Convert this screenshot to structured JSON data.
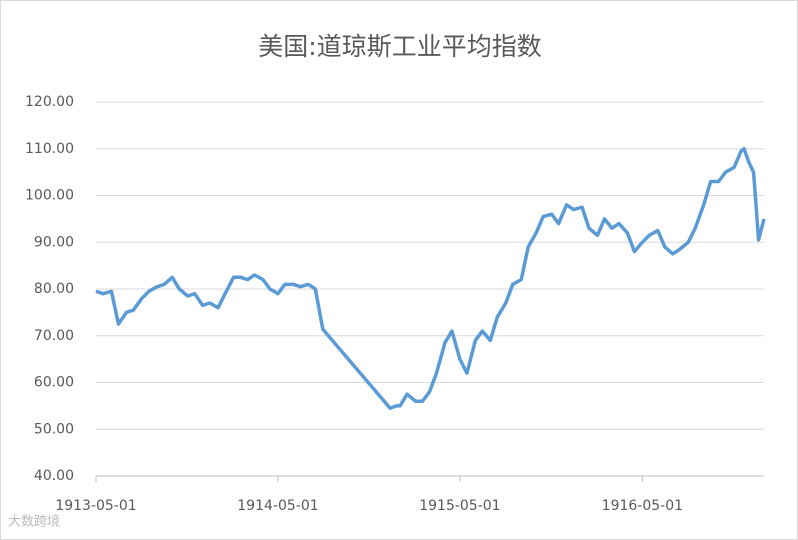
{
  "chart_data": {
    "type": "line",
    "title": "美国:道琼斯工业平均指数",
    "x": [
      "1913-05-01",
      "1913-05-15",
      "1913-06-01",
      "1913-06-10",
      "1913-06-15",
      "1913-07-01",
      "1913-07-15",
      "1913-08-01",
      "1913-08-15",
      "1913-09-01",
      "1913-09-15",
      "1913-10-01",
      "1913-10-15",
      "1913-11-01",
      "1913-11-15",
      "1913-12-01",
      "1913-12-15",
      "1914-01-01",
      "1914-01-15",
      "1914-02-01",
      "1914-02-15",
      "1914-03-01",
      "1914-03-15",
      "1914-04-01",
      "1914-04-15",
      "1914-05-01",
      "1914-05-15",
      "1914-06-01",
      "1914-06-15",
      "1914-07-01",
      "1914-07-15",
      "1914-07-30",
      "1914-12-12",
      "1914-12-24",
      "1915-01-01",
      "1915-01-15",
      "1915-02-01",
      "1915-02-15",
      "1915-03-01",
      "1915-03-15",
      "1915-04-01",
      "1915-04-15",
      "1915-05-01",
      "1915-05-15",
      "1915-06-01",
      "1915-06-15",
      "1915-07-01",
      "1915-07-15",
      "1915-08-01",
      "1915-08-15",
      "1915-09-01",
      "1915-09-15",
      "1915-10-01",
      "1915-10-15",
      "1915-11-01",
      "1915-11-15",
      "1915-12-01",
      "1915-12-15",
      "1916-01-01",
      "1916-01-15",
      "1916-02-01",
      "1916-02-15",
      "1916-03-01",
      "1916-03-15",
      "1916-04-01",
      "1916-04-15",
      "1916-05-01",
      "1916-05-15",
      "1916-06-01",
      "1916-06-15",
      "1916-07-01",
      "1916-07-15",
      "1916-08-01",
      "1916-08-15",
      "1916-09-01",
      "1916-09-15",
      "1916-10-01",
      "1916-10-15",
      "1916-11-01",
      "1916-11-15",
      "1916-11-21",
      "1916-12-01",
      "1916-12-10",
      "1916-12-15",
      "1916-12-20",
      "1916-12-31"
    ],
    "series": [
      {
        "name": "美国:道琼斯工业平均指数",
        "color": "#5b9bd5",
        "values": [
          79.5,
          79,
          79.5,
          75,
          72.5,
          75,
          75.5,
          78,
          79.5,
          80.5,
          81,
          82.5,
          80,
          78.5,
          79,
          76.5,
          77,
          76,
          79,
          82.5,
          82.5,
          82,
          83,
          82,
          80,
          79,
          81,
          81,
          80.5,
          81,
          80,
          71.4,
          54.5,
          55,
          55,
          57.5,
          56,
          56,
          58,
          62,
          68.5,
          71,
          65,
          62,
          69,
          71,
          69,
          74,
          77,
          81,
          82,
          89,
          92,
          95.5,
          96,
          94,
          98,
          97,
          97.5,
          93,
          91.5,
          95,
          93,
          94,
          92,
          88,
          90,
          91.5,
          92.5,
          89,
          87.5,
          88.5,
          90,
          93,
          98,
          103,
          103,
          105,
          106,
          109.5,
          110,
          107,
          105,
          98,
          90.5,
          95
        ]
      }
    ],
    "xlim": [
      "1913-05-01",
      "1916-12-31"
    ],
    "xticks": [
      "1913-05-01",
      "1914-05-01",
      "1915-05-01",
      "1916-05-01"
    ],
    "ylim": [
      40,
      120
    ],
    "yticks": [
      {
        "value": 40,
        "label": "40.00"
      },
      {
        "value": 50,
        "label": "50.00"
      },
      {
        "value": 60,
        "label": "60.00"
      },
      {
        "value": 70,
        "label": "70.00"
      },
      {
        "value": 80,
        "label": "80.00"
      },
      {
        "value": 90,
        "label": "90.00"
      },
      {
        "value": 100,
        "label": "100.00"
      },
      {
        "value": 110,
        "label": "110.00"
      },
      {
        "value": 120,
        "label": "120.00"
      }
    ],
    "grid": true,
    "watermark": "大数跨境"
  }
}
